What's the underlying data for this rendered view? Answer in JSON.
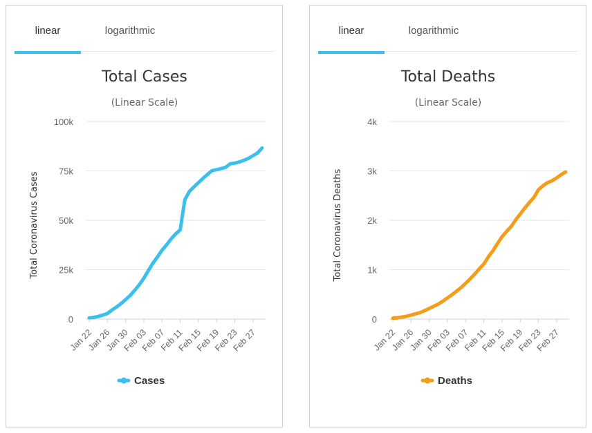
{
  "panels": [
    {
      "tabs": [
        {
          "label": "linear",
          "active": true
        },
        {
          "label": "logarithmic",
          "active": false
        }
      ],
      "accent": "#3cbfee"
    },
    {
      "tabs": [
        {
          "label": "linear",
          "active": true
        },
        {
          "label": "logarithmic",
          "active": false
        }
      ],
      "accent": "#3cbfee"
    }
  ],
  "chart_data": [
    {
      "type": "line",
      "title": "Total Cases",
      "subtitle": "(Linear Scale)",
      "xlabel": "",
      "ylabel": "Total Coronavirus Cases",
      "ylim": [
        0,
        100000
      ],
      "yticks": [
        0,
        25000,
        50000,
        75000,
        100000
      ],
      "ytick_labels": [
        "0",
        "25k",
        "50k",
        "75k",
        "100k"
      ],
      "x": [
        "Jan 22",
        "Jan 23",
        "Jan 24",
        "Jan 25",
        "Jan 26",
        "Jan 27",
        "Jan 28",
        "Jan 29",
        "Jan 30",
        "Jan 31",
        "Feb 01",
        "Feb 02",
        "Feb 03",
        "Feb 04",
        "Feb 05",
        "Feb 06",
        "Feb 07",
        "Feb 08",
        "Feb 09",
        "Feb 10",
        "Feb 11",
        "Feb 12",
        "Feb 13",
        "Feb 14",
        "Feb 15",
        "Feb 16",
        "Feb 17",
        "Feb 18",
        "Feb 19",
        "Feb 20",
        "Feb 21",
        "Feb 22",
        "Feb 23",
        "Feb 24",
        "Feb 25",
        "Feb 26",
        "Feb 27",
        "Feb 28",
        "Feb 29"
      ],
      "xtick_labels": [
        "Jan 22",
        "Jan 26",
        "Jan 30",
        "Feb 03",
        "Feb 07",
        "Feb 11",
        "Feb 15",
        "Feb 19",
        "Feb 23",
        "Feb 27"
      ],
      "series": [
        {
          "name": "Cases",
          "color": "#3cbfee",
          "values": [
            580,
            850,
            1320,
            2020,
            2800,
            4590,
            6070,
            7850,
            9820,
            11950,
            14550,
            17390,
            20630,
            24550,
            28280,
            31480,
            34880,
            37550,
            40560,
            43100,
            45170,
            60330,
            64550,
            66890,
            69030,
            71230,
            73270,
            75140,
            75640,
            76200,
            76840,
            78600,
            78950,
            79550,
            80390,
            81350,
            82700,
            84100,
            86600
          ],
          "xtick_every": 4
        }
      ],
      "legend": [
        {
          "label": "Cases",
          "color": "#3cbfee"
        }
      ],
      "legend_position": "bottom",
      "grid": true
    },
    {
      "type": "line",
      "title": "Total Deaths",
      "subtitle": "(Linear Scale)",
      "xlabel": "",
      "ylabel": "Total Coronavirus Deaths",
      "ylim": [
        0,
        4000
      ],
      "yticks": [
        0,
        1000,
        2000,
        3000,
        4000
      ],
      "ytick_labels": [
        "0",
        "1k",
        "2k",
        "3k",
        "4k"
      ],
      "x": [
        "Jan 22",
        "Jan 23",
        "Jan 24",
        "Jan 25",
        "Jan 26",
        "Jan 27",
        "Jan 28",
        "Jan 29",
        "Jan 30",
        "Jan 31",
        "Feb 01",
        "Feb 02",
        "Feb 03",
        "Feb 04",
        "Feb 05",
        "Feb 06",
        "Feb 07",
        "Feb 08",
        "Feb 09",
        "Feb 10",
        "Feb 11",
        "Feb 12",
        "Feb 13",
        "Feb 14",
        "Feb 15",
        "Feb 16",
        "Feb 17",
        "Feb 18",
        "Feb 19",
        "Feb 20",
        "Feb 21",
        "Feb 22",
        "Feb 23",
        "Feb 24",
        "Feb 25",
        "Feb 26",
        "Feb 27",
        "Feb 28",
        "Feb 29"
      ],
      "xtick_labels": [
        "Jan 22",
        "Jan 26",
        "Jan 30",
        "Feb 03",
        "Feb 07",
        "Feb 11",
        "Feb 15",
        "Feb 19",
        "Feb 23",
        "Feb 27"
      ],
      "series": [
        {
          "name": "Deaths",
          "color": "#f59c1a",
          "values": [
            17,
            25,
            41,
            56,
            80,
            106,
            132,
            170,
            213,
            259,
            305,
            362,
            426,
            492,
            565,
            638,
            724,
            813,
            910,
            1018,
            1115,
            1261,
            1383,
            1526,
            1669,
            1775,
            1873,
            2009,
            2126,
            2247,
            2360,
            2460,
            2618,
            2699,
            2763,
            2800,
            2858,
            2924,
            2980
          ]
        }
      ],
      "legend": [
        {
          "label": "Deaths",
          "color": "#f59c1a"
        }
      ],
      "legend_position": "bottom",
      "grid": true
    }
  ]
}
